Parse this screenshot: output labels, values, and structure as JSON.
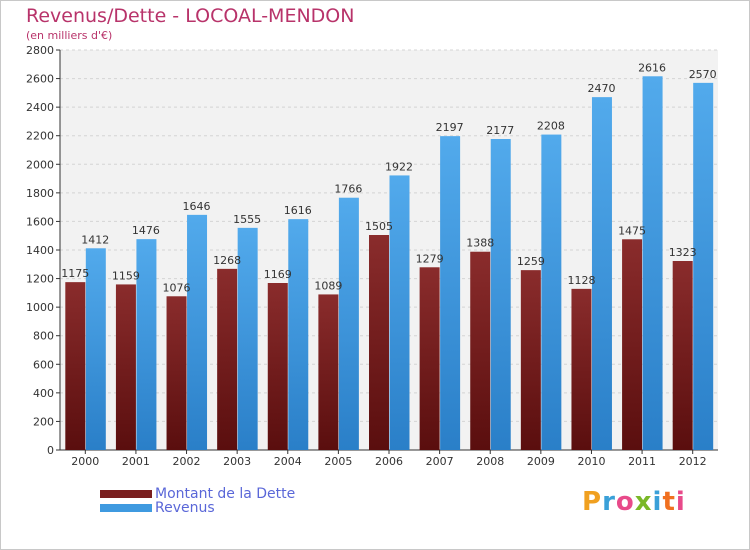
{
  "title": "Revenus/Dette - LOCOAL-MENDON",
  "subtitle": "(en milliers d'€)",
  "colors": {
    "dette": "#7a1f1f",
    "revenus": "#3f9ae0",
    "title": "#b8336a",
    "legend_text": "#5a67d8"
  },
  "chart_data": {
    "type": "bar",
    "categories": [
      "2000",
      "2001",
      "2002",
      "2003",
      "2004",
      "2005",
      "2006",
      "2007",
      "2008",
      "2009",
      "2010",
      "2011",
      "2012"
    ],
    "series": [
      {
        "name": "Montant de la Dette",
        "values": [
          1175,
          1159,
          1076,
          1268,
          1169,
          1089,
          1505,
          1279,
          1388,
          1259,
          1128,
          1475,
          1323
        ]
      },
      {
        "name": "Revenus",
        "values": [
          1412,
          1476,
          1646,
          1555,
          1616,
          1766,
          1922,
          2197,
          2177,
          2208,
          2470,
          2616,
          2570
        ]
      }
    ],
    "ylim": [
      0,
      2800
    ],
    "yticks": [
      0,
      200,
      400,
      600,
      800,
      1000,
      1200,
      1400,
      1600,
      1800,
      2000,
      2200,
      2400,
      2600,
      2800
    ],
    "grid": true,
    "legend": "bottom-left"
  },
  "legend": {
    "items": [
      {
        "label": "Montant de la Dette",
        "color": "#7a1f1f"
      },
      {
        "label": "Revenus",
        "color": "#3f9ae0"
      }
    ]
  },
  "logo": {
    "letters": [
      "P",
      "r",
      "o",
      "x",
      "i",
      "t",
      "i"
    ],
    "colors": [
      "#f0a020",
      "#3aa0d8",
      "#e84a8a",
      "#7ab828",
      "#3aa0d8",
      "#f07020",
      "#e84a8a"
    ]
  }
}
